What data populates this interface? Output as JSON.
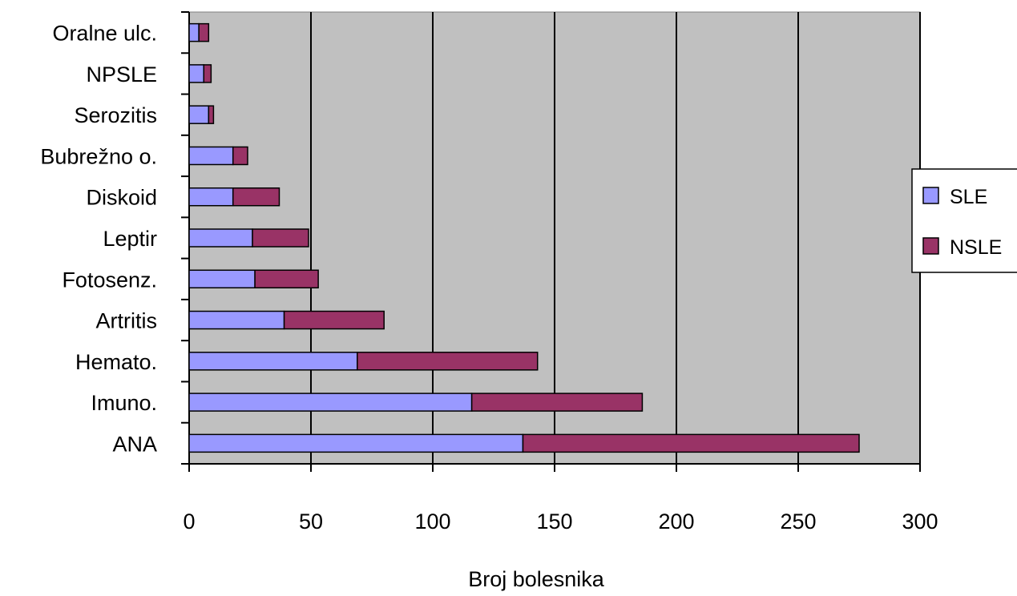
{
  "chart_data": {
    "type": "bar",
    "orientation": "horizontal",
    "stacked": true,
    "categories": [
      "ANA",
      "Imuno.",
      "Hemato.",
      "Artritis",
      "Fotosenz.",
      "Leptir",
      "Diskoid",
      "Bubrežno o.",
      "Serozitis",
      "NPSLE",
      "Oralne ulc."
    ],
    "series": [
      {
        "name": "SLE",
        "color": "#9999ff",
        "values": [
          137,
          116,
          69,
          39,
          27,
          26,
          18,
          18,
          8,
          6,
          4
        ]
      },
      {
        "name": "NSLE",
        "color": "#993366",
        "values": [
          138,
          70,
          74,
          41,
          26,
          23,
          19,
          6,
          2,
          3,
          4
        ]
      }
    ],
    "xlabel": "Broj bolesnika",
    "ylabel": "",
    "xlim": [
      0,
      300
    ],
    "xticks": [
      "0",
      "50",
      "100",
      "150",
      "200",
      "250",
      "300"
    ],
    "grid": "vertical",
    "legend_position": "right",
    "plot_background": "#c0c0c0"
  }
}
